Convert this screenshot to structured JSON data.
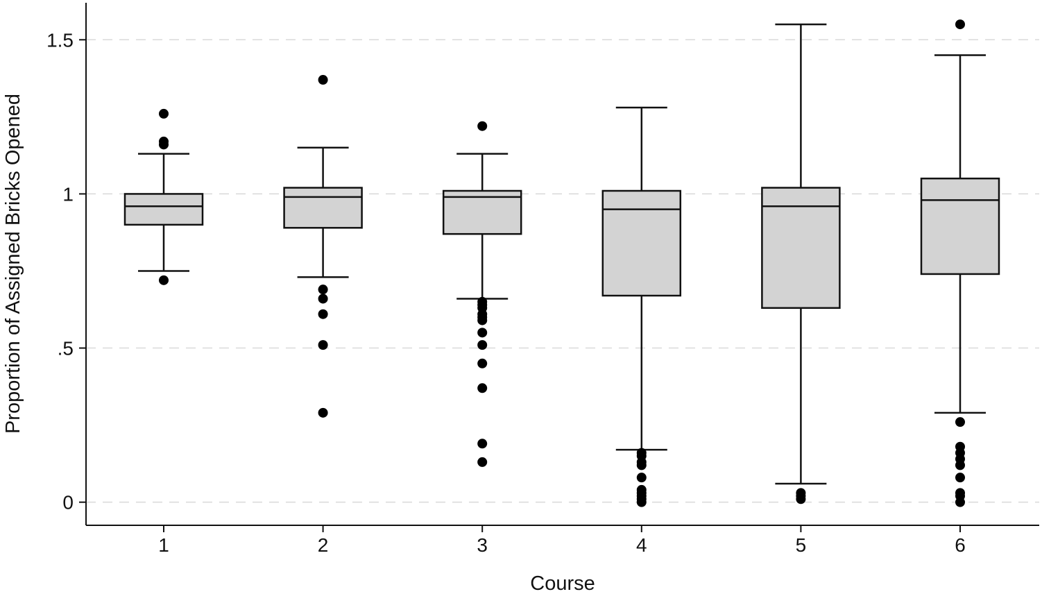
{
  "chart_data": {
    "type": "boxplot",
    "title": "",
    "xlabel": "Course",
    "ylabel": "Proportion of Assigned Bricks Opened",
    "ylim": [
      -0.075,
      1.62
    ],
    "yticks": [
      {
        "value": 0,
        "label": "0"
      },
      {
        "value": 0.5,
        "label": ".5"
      },
      {
        "value": 1,
        "label": "1"
      },
      {
        "value": 1.5,
        "label": "1.5"
      }
    ],
    "grid": "horizontal-dashed",
    "colors": {
      "box_fill": "#d3d3d3",
      "stroke": "#111111",
      "grid": "#d9d9d9",
      "outlier": "#000000"
    },
    "categories": [
      "1",
      "2",
      "3",
      "4",
      "5",
      "6"
    ],
    "boxes": [
      {
        "category": "1",
        "whisker_low": 0.75,
        "q1": 0.9,
        "median": 0.96,
        "q3": 1.0,
        "whisker_high": 1.13,
        "outliers": [
          1.26,
          1.17,
          1.16,
          0.72
        ]
      },
      {
        "category": "2",
        "whisker_low": 0.73,
        "q1": 0.89,
        "median": 0.99,
        "q3": 1.02,
        "whisker_high": 1.15,
        "outliers": [
          1.37,
          0.69,
          0.66,
          0.61,
          0.51,
          0.29
        ]
      },
      {
        "category": "3",
        "whisker_low": 0.66,
        "q1": 0.87,
        "median": 0.99,
        "q3": 1.01,
        "whisker_high": 1.13,
        "outliers": [
          1.22,
          0.65,
          0.64,
          0.63,
          0.61,
          0.6,
          0.59,
          0.55,
          0.51,
          0.45,
          0.37,
          0.19,
          0.13
        ]
      },
      {
        "category": "4",
        "whisker_low": 0.17,
        "q1": 0.67,
        "median": 0.95,
        "q3": 1.01,
        "whisker_high": 1.28,
        "outliers": [
          0.16,
          0.15,
          0.13,
          0.12,
          0.08,
          0.04,
          0.03,
          0.02,
          0.01,
          0.0
        ]
      },
      {
        "category": "5",
        "whisker_low": 0.06,
        "q1": 0.63,
        "median": 0.96,
        "q3": 1.02,
        "whisker_high": 1.55,
        "outliers": [
          0.03,
          0.02,
          0.01
        ]
      },
      {
        "category": "6",
        "whisker_low": 0.29,
        "q1": 0.74,
        "median": 0.98,
        "q3": 1.05,
        "whisker_high": 1.45,
        "outliers": [
          1.55,
          0.26,
          0.18,
          0.16,
          0.14,
          0.12,
          0.08,
          0.03,
          0.02,
          0.0
        ]
      }
    ]
  }
}
